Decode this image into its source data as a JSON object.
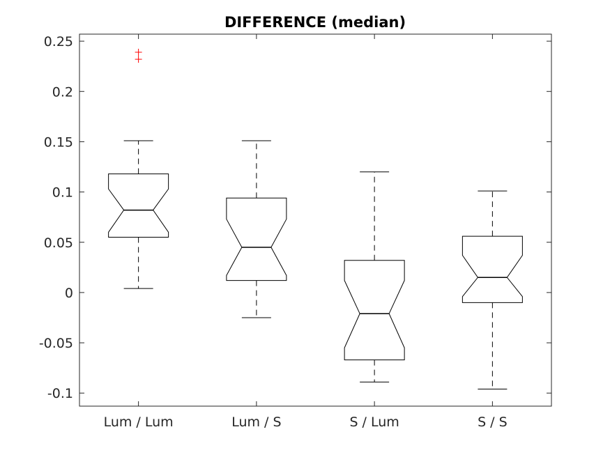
{
  "chart_data": {
    "type": "boxplot",
    "title": "DIFFERENCE (median)",
    "categories": [
      "Lum / Lum",
      "Lum / S",
      "S / Lum",
      "S / S"
    ],
    "ylim": [
      -0.113,
      0.257
    ],
    "yticks": [
      -0.1,
      -0.05,
      0,
      0.05,
      0.1,
      0.15,
      0.2,
      0.25
    ],
    "ytick_labels": [
      "-0.1",
      "-0.05",
      "0",
      "0.05",
      "0.1",
      "0.15",
      "0.2",
      "0.25"
    ],
    "notched": true,
    "grid": false,
    "box_color": "#000000",
    "outlier_color": "#ff0000",
    "boxes": [
      {
        "category": "Lum / Lum",
        "whisker_low": 0.004,
        "q1": 0.055,
        "notch_low": 0.06,
        "median": 0.082,
        "notch_high": 0.103,
        "q3": 0.118,
        "whisker_high": 0.151,
        "outliers": [
          0.232,
          0.239
        ]
      },
      {
        "category": "Lum / S",
        "whisker_low": -0.025,
        "q1": 0.012,
        "notch_low": 0.017,
        "median": 0.045,
        "notch_high": 0.073,
        "q3": 0.094,
        "whisker_high": 0.151,
        "outliers": []
      },
      {
        "category": "S / Lum",
        "whisker_low": -0.089,
        "q1": -0.067,
        "notch_low": -0.055,
        "median": -0.021,
        "notch_high": 0.012,
        "q3": 0.032,
        "whisker_high": 0.12,
        "outliers": []
      },
      {
        "category": "S / S",
        "whisker_low": -0.096,
        "q1": -0.01,
        "notch_low": -0.004,
        "median": 0.015,
        "notch_high": 0.037,
        "q3": 0.056,
        "whisker_high": 0.101,
        "outliers": []
      }
    ]
  }
}
